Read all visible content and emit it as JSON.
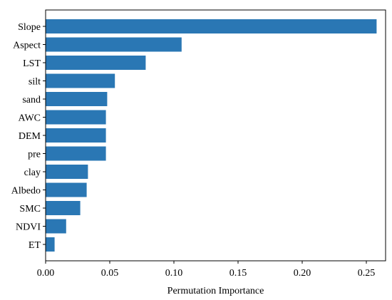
{
  "chart_data": {
    "type": "bar",
    "orientation": "horizontal",
    "categories": [
      "Slope",
      "Aspect",
      "LST",
      "silt",
      "sand",
      "AWC",
      "DEM",
      "pre",
      "clay",
      "Albedo",
      "SMC",
      "NDVI",
      "ET"
    ],
    "values": [
      0.258,
      0.106,
      0.078,
      0.054,
      0.048,
      0.047,
      0.047,
      0.047,
      0.033,
      0.032,
      0.027,
      0.016,
      0.007
    ],
    "xlabel": "Permutation Importance",
    "ylabel": "",
    "xlim": [
      0.0,
      0.265
    ],
    "xticks": [
      "0.00",
      "0.05",
      "0.10",
      "0.15",
      "0.20",
      "0.25"
    ],
    "xtick_values": [
      0.0,
      0.05,
      0.1,
      0.15,
      0.2,
      0.25
    ],
    "grid": false,
    "legend": "none",
    "colors": {
      "bar": "#2a77b4",
      "axis": "#000000",
      "background": "#ffffff"
    }
  }
}
